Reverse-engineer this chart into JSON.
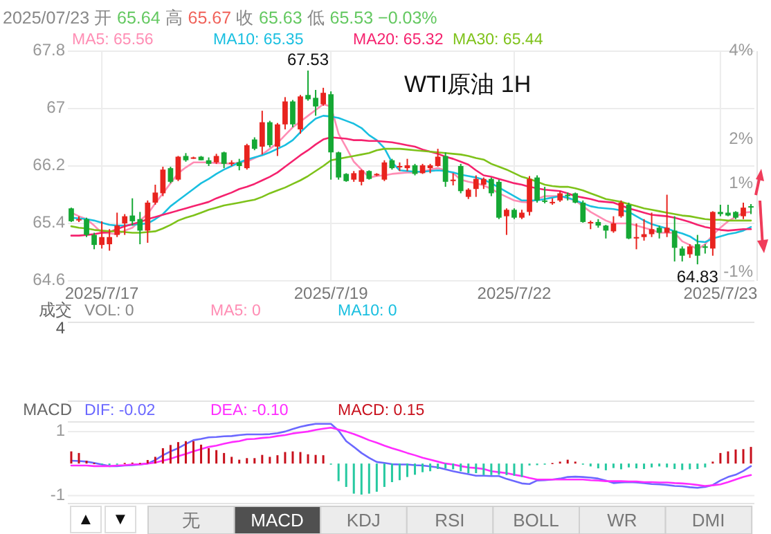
{
  "chart_data": [
    {
      "type": "candlestick",
      "title": "WTI原油 1H",
      "subtitle": "2025/07/23 开 65.64 高 65.67 收 65.63 低 65.53 −0.03%",
      "categories": [
        null,
        null,
        null,
        null,
        "2025/7/17",
        null,
        null,
        null,
        null,
        null,
        null,
        null,
        null,
        null,
        null,
        null,
        null,
        null,
        null,
        null,
        null,
        null,
        null,
        null,
        null,
        null,
        null,
        null,
        null,
        null,
        null,
        null,
        null,
        null,
        "2025/7/19",
        null,
        null,
        null,
        null,
        null,
        null,
        null,
        null,
        null,
        null,
        null,
        null,
        null,
        null,
        null,
        null,
        null,
        null,
        null,
        null,
        null,
        null,
        null,
        "2025/7/22",
        null,
        null,
        null,
        null,
        null,
        null,
        null,
        null,
        null,
        null,
        null,
        null,
        null,
        null,
        null,
        null,
        null,
        null,
        null,
        null,
        null,
        null,
        null,
        null,
        null,
        null,
        "2025/7/23",
        null,
        null,
        null,
        null
      ],
      "ohlc": [
        [
          65.61,
          65.62,
          65.42,
          65.43
        ],
        [
          65.45,
          65.5,
          65.42,
          65.46
        ],
        [
          65.46,
          65.48,
          65.21,
          65.24
        ],
        [
          65.24,
          65.27,
          65.04,
          65.1
        ],
        [
          65.1,
          65.43,
          65.05,
          65.21
        ],
        [
          65.11,
          65.32,
          65.02,
          65.21
        ],
        [
          65.24,
          65.55,
          65.21,
          65.37
        ],
        [
          65.4,
          65.53,
          65.24,
          65.5
        ],
        [
          65.51,
          65.75,
          65.37,
          65.43
        ],
        [
          65.46,
          65.56,
          65.11,
          65.3
        ],
        [
          65.3,
          65.72,
          65.13,
          65.69
        ],
        [
          65.69,
          65.94,
          65.66,
          65.83
        ],
        [
          65.82,
          66.19,
          65.78,
          66.15
        ],
        [
          66.17,
          66.19,
          65.96,
          65.98
        ],
        [
          66.01,
          66.34,
          65.99,
          66.33
        ],
        [
          66.34,
          66.38,
          66.26,
          66.28
        ],
        [
          66.31,
          66.33,
          66.3,
          66.32
        ],
        [
          66.33,
          66.34,
          66.28,
          66.28
        ],
        [
          66.28,
          66.32,
          66.2,
          66.23
        ],
        [
          66.25,
          66.37,
          66.23,
          66.34
        ],
        [
          66.39,
          66.4,
          66.17,
          66.23
        ],
        [
          66.23,
          66.28,
          66.2,
          66.25
        ],
        [
          66.25,
          66.3,
          66.14,
          66.2
        ],
        [
          66.17,
          66.51,
          66.15,
          66.49
        ],
        [
          66.57,
          66.6,
          66.42,
          66.44
        ],
        [
          66.47,
          66.97,
          66.36,
          66.81
        ],
        [
          66.81,
          66.83,
          66.46,
          66.49
        ],
        [
          66.47,
          66.8,
          66.34,
          66.78
        ],
        [
          66.78,
          67.16,
          66.71,
          67.1
        ],
        [
          67.1,
          67.12,
          66.74,
          66.78
        ],
        [
          66.71,
          67.19,
          66.65,
          67.17
        ],
        [
          67.19,
          67.53,
          67.11,
          67.13
        ],
        [
          67.15,
          67.26,
          66.9,
          67.03
        ],
        [
          67.06,
          67.29,
          67.04,
          67.22
        ],
        [
          67.2,
          67.24,
          66.01,
          66.39
        ],
        [
          66.39,
          66.4,
          66.01,
          66.04
        ],
        [
          66.09,
          66.1,
          65.98,
          65.99
        ],
        [
          66.01,
          66.13,
          65.98,
          66.1
        ],
        [
          65.98,
          66.15,
          65.93,
          66.14
        ],
        [
          66.13,
          66.14,
          66.01,
          66.02
        ],
        [
          66.07,
          66.1,
          66.06,
          66.09
        ],
        [
          66.01,
          66.28,
          65.99,
          66.25
        ],
        [
          66.28,
          66.3,
          66.15,
          66.17
        ],
        [
          66.19,
          66.25,
          66.13,
          66.2
        ],
        [
          66.17,
          66.3,
          66.13,
          66.21
        ],
        [
          66.21,
          66.23,
          66.07,
          66.09
        ],
        [
          66.1,
          66.23,
          66.09,
          66.21
        ],
        [
          66.17,
          66.23,
          66.1,
          66.21
        ],
        [
          66.2,
          66.44,
          66.19,
          66.33
        ],
        [
          66.34,
          66.39,
          65.91,
          65.98
        ],
        [
          65.99,
          66.1,
          65.93,
          66.01
        ],
        [
          66.2,
          66.23,
          65.82,
          65.85
        ],
        [
          65.77,
          65.89,
          65.74,
          65.87
        ],
        [
          65.88,
          66.07,
          65.77,
          66.02
        ],
        [
          65.94,
          66.04,
          65.88,
          66.02
        ],
        [
          66.02,
          66.04,
          65.78,
          65.82
        ],
        [
          65.98,
          66.01,
          65.46,
          65.48
        ],
        [
          65.5,
          65.61,
          65.24,
          65.59
        ],
        [
          65.59,
          65.61,
          65.46,
          65.48
        ],
        [
          65.48,
          65.59,
          65.46,
          65.55
        ],
        [
          65.56,
          66.06,
          65.51,
          66.02
        ],
        [
          66.04,
          66.07,
          65.69,
          65.72
        ],
        [
          65.72,
          65.91,
          65.68,
          65.7
        ],
        [
          65.69,
          65.75,
          65.66,
          65.7
        ],
        [
          65.72,
          65.85,
          65.7,
          65.82
        ],
        [
          65.8,
          65.83,
          65.72,
          65.78
        ],
        [
          65.82,
          65.83,
          65.68,
          65.69
        ],
        [
          65.69,
          65.72,
          65.41,
          65.42
        ],
        [
          65.4,
          65.44,
          65.32,
          65.42
        ],
        [
          65.42,
          65.46,
          65.34,
          65.37
        ],
        [
          65.37,
          65.38,
          65.19,
          65.3
        ],
        [
          65.29,
          65.5,
          65.27,
          65.4
        ],
        [
          65.5,
          65.72,
          65.48,
          65.69
        ],
        [
          65.66,
          65.69,
          65.18,
          65.19
        ],
        [
          65.19,
          65.4,
          65.04,
          65.21
        ],
        [
          65.21,
          65.46,
          65.16,
          65.25
        ],
        [
          65.25,
          65.55,
          65.21,
          65.32
        ],
        [
          65.34,
          65.37,
          65.19,
          65.27
        ],
        [
          65.27,
          65.8,
          65.21,
          65.34
        ],
        [
          65.3,
          65.5,
          64.87,
          65.06
        ],
        [
          65.05,
          65.08,
          64.87,
          64.95
        ],
        [
          64.97,
          65.11,
          64.92,
          65.08
        ],
        [
          65.11,
          65.24,
          64.83,
          64.95
        ],
        [
          65.08,
          65.11,
          64.98,
          65.06
        ],
        [
          65.05,
          65.57,
          64.95,
          65.56
        ],
        [
          65.56,
          65.66,
          65.5,
          65.53
        ],
        [
          65.55,
          65.66,
          65.5,
          65.51
        ],
        [
          65.56,
          65.57,
          65.46,
          65.48
        ],
        [
          65.5,
          65.69,
          65.46,
          65.62
        ],
        [
          65.64,
          65.67,
          65.53,
          65.63
        ]
      ],
      "series": [
        {
          "name": "MA5: 65.56",
          "type": "line",
          "color": "#ff8db4",
          "values": [
            65.55,
            65.5,
            65.46,
            65.37,
            65.27,
            65.26,
            65.25,
            65.3,
            65.34,
            65.44,
            65.53,
            65.68,
            65.82,
            65.96,
            66.1,
            66.18,
            66.25,
            66.25,
            66.25,
            66.24,
            66.24,
            66.23,
            66.25,
            66.26,
            66.31,
            66.36,
            66.44,
            66.52,
            66.63,
            66.74,
            66.82,
            66.9,
            66.98,
            67.06,
            67.03,
            66.65,
            66.46,
            66.26,
            66.15,
            66.04,
            66.06,
            66.07,
            66.09,
            66.1,
            66.11,
            66.11,
            66.12,
            66.15,
            66.17,
            66.14,
            66.1,
            66.01,
            65.98,
            65.96,
            65.93,
            65.88,
            65.82,
            65.77,
            65.72,
            65.7,
            65.69,
            65.74,
            65.78,
            65.78,
            65.78,
            65.75,
            65.72,
            65.64,
            65.56,
            65.5,
            65.44,
            65.4,
            65.4,
            65.4,
            65.37,
            65.34,
            65.31,
            65.27,
            65.27,
            65.27,
            65.15,
            65.1,
            65.04,
            65.11,
            65.24,
            65.34,
            65.43,
            65.49,
            65.55,
            65.56
          ]
        },
        {
          "name": "MA10: 65.35",
          "type": "line",
          "color": "#19bfe0",
          "values": [
            65.48,
            65.47,
            65.46,
            65.44,
            65.41,
            65.38,
            65.37,
            65.37,
            65.38,
            65.39,
            65.4,
            65.46,
            65.53,
            65.64,
            65.72,
            65.8,
            65.88,
            65.96,
            66.02,
            66.09,
            66.15,
            66.2,
            66.25,
            66.29,
            66.32,
            66.35,
            66.39,
            66.44,
            66.49,
            66.56,
            66.67,
            66.77,
            66.86,
            66.9,
            66.89,
            66.87,
            66.83,
            66.79,
            66.73,
            66.63,
            66.56,
            66.45,
            66.25,
            66.14,
            66.13,
            66.12,
            66.12,
            66.13,
            66.14,
            66.13,
            66.11,
            66.08,
            66.06,
            66.04,
            66.01,
            65.96,
            65.9,
            65.84,
            65.78,
            65.72,
            65.72,
            65.72,
            65.74,
            65.76,
            65.78,
            65.76,
            65.72,
            65.68,
            65.64,
            65.62,
            65.61,
            65.6,
            65.58,
            65.56,
            65.5,
            65.44,
            65.39,
            65.36,
            65.33,
            65.29,
            65.26,
            65.22,
            65.15,
            65.14,
            65.19,
            65.22,
            65.25,
            65.27,
            65.3,
            65.35
          ]
        },
        {
          "name": "MA20: 65.32",
          "type": "line",
          "color": "#f5226e",
          "values": [
            65.23,
            65.23,
            65.24,
            65.25,
            65.27,
            65.28,
            65.32,
            65.36,
            65.39,
            65.42,
            65.46,
            65.49,
            65.52,
            65.55,
            65.58,
            65.61,
            65.64,
            65.67,
            65.7,
            65.75,
            65.79,
            65.83,
            65.88,
            65.91,
            65.95,
            66.0,
            66.05,
            66.11,
            66.19,
            66.27,
            66.35,
            66.42,
            66.5,
            66.57,
            66.6,
            66.59,
            66.58,
            66.56,
            66.56,
            66.55,
            66.55,
            66.54,
            66.53,
            66.51,
            66.49,
            66.47,
            66.43,
            66.4,
            66.37,
            66.33,
            66.3,
            66.26,
            66.22,
            66.14,
            66.07,
            66.05,
            66.02,
            65.99,
            65.96,
            65.94,
            65.91,
            65.89,
            65.87,
            65.86,
            65.85,
            65.82,
            65.78,
            65.76,
            65.74,
            65.71,
            65.7,
            65.69,
            65.65,
            65.61,
            65.58,
            65.55,
            65.52,
            65.51,
            65.5,
            65.48,
            65.45,
            65.42,
            65.38,
            65.35,
            65.33,
            65.31,
            65.3,
            65.31,
            65.32,
            65.32
          ]
        },
        {
          "name": "MA30: 65.44",
          "type": "line",
          "color": "#7ec21a",
          "values": [
            65.36,
            65.34,
            65.33,
            65.31,
            65.3,
            65.29,
            65.29,
            65.28,
            65.27,
            65.27,
            65.28,
            65.29,
            65.33,
            65.38,
            65.44,
            65.48,
            65.51,
            65.55,
            65.59,
            65.62,
            65.65,
            65.67,
            65.69,
            65.71,
            65.73,
            65.77,
            65.82,
            65.86,
            65.9,
            65.95,
            66.0,
            66.06,
            66.13,
            66.2,
            66.28,
            66.3,
            66.32,
            66.34,
            66.36,
            66.38,
            66.42,
            66.44,
            66.44,
            66.44,
            66.43,
            66.42,
            66.41,
            66.4,
            66.39,
            66.38,
            66.37,
            66.36,
            66.34,
            66.31,
            66.29,
            66.23,
            66.19,
            66.15,
            66.1,
            66.05,
            66.02,
            65.98,
            65.94,
            65.92,
            65.91,
            65.91,
            65.89,
            65.86,
            65.82,
            65.78,
            65.74,
            65.72,
            65.7,
            65.67,
            65.64,
            65.61,
            65.59,
            65.57,
            65.55,
            65.53,
            65.51,
            65.5,
            65.48,
            65.46,
            65.45,
            65.45,
            65.44,
            65.44,
            65.44,
            65.44
          ]
        }
      ],
      "ylim": [
        64.6,
        67.8
      ],
      "yticks": [
        64.6,
        65.4,
        66.2,
        67,
        67.8
      ],
      "y2lim": [
        -1.2,
        4
      ],
      "y2ticks": [
        {
          "value": -1,
          "label": "-1%"
        },
        {
          "value": 1,
          "label": "1%"
        },
        {
          "value": 2,
          "label": "2%"
        },
        {
          "value": 4,
          "label": "4%"
        }
      ],
      "annotations": [
        {
          "text": "67.53",
          "y": 67.53
        },
        {
          "text": "64.83",
          "y": 64.83
        }
      ],
      "grid": true,
      "legend": "top"
    },
    {
      "type": "other",
      "title": "成交",
      "series": [
        {
          "name": "VOL: 0",
          "color": "#888888"
        },
        {
          "name": "MA5: 0",
          "color": "#ff8db4"
        },
        {
          "name": "MA10: 0",
          "color": "#19bfe0"
        }
      ],
      "annotations": [
        "4"
      ]
    },
    {
      "type": "bar",
      "title": "MACD",
      "categories": [
        null,
        null,
        null,
        null,
        null,
        null,
        null,
        null,
        null,
        null,
        null,
        null,
        null,
        null,
        null,
        null,
        null,
        null,
        null,
        null,
        null,
        null,
        null,
        null,
        null,
        null,
        null,
        null,
        null,
        null,
        null,
        null,
        null,
        null,
        null,
        null,
        null,
        null,
        null,
        null,
        null,
        null,
        null,
        null,
        null,
        null,
        null,
        null,
        null,
        null,
        null,
        null,
        null,
        null,
        null,
        null,
        null,
        null,
        null,
        null,
        null,
        null,
        null,
        null,
        null,
        null,
        null,
        null,
        null,
        null,
        null,
        null,
        null,
        null,
        null,
        null,
        null,
        null,
        null,
        null,
        null,
        null,
        null,
        null,
        null,
        null,
        null,
        null,
        null,
        null
      ],
      "series": [
        {
          "name": "DIF: -0.02",
          "type": "line",
          "color": "#6b68ff",
          "values": [
            0.09,
            0.08,
            0.06,
            0.02,
            -0.03,
            -0.08,
            -0.08,
            -0.06,
            -0.05,
            -0.03,
            0,
            0.11,
            0.26,
            0.38,
            0.48,
            0.61,
            0.73,
            0.77,
            0.82,
            0.83,
            0.85,
            0.86,
            0.89,
            0.91,
            0.91,
            0.91,
            0.92,
            0.95,
            1.0,
            1.08,
            1.15,
            1.2,
            1.24,
            1.24,
            1.24,
            1.03,
            0.7,
            0.52,
            0.33,
            0.18,
            0.05,
            0.02,
            -0.02,
            -0.03,
            -0.03,
            -0.05,
            -0.06,
            -0.09,
            -0.12,
            -0.18,
            -0.24,
            -0.29,
            -0.33,
            -0.38,
            -0.38,
            -0.39,
            -0.39,
            -0.48,
            -0.55,
            -0.62,
            -0.64,
            -0.53,
            -0.52,
            -0.5,
            -0.47,
            -0.42,
            -0.41,
            -0.42,
            -0.44,
            -0.47,
            -0.53,
            -0.61,
            -0.59,
            -0.58,
            -0.59,
            -0.61,
            -0.64,
            -0.65,
            -0.67,
            -0.7,
            -0.71,
            -0.74,
            -0.76,
            -0.73,
            -0.67,
            -0.53,
            -0.42,
            -0.35,
            -0.23,
            -0.08
          ]
        },
        {
          "name": "DEA: -0.10",
          "type": "line",
          "color": "#ff2cff",
          "values": [
            -0.06,
            -0.06,
            -0.06,
            -0.08,
            -0.08,
            -0.08,
            -0.06,
            -0.05,
            -0.03,
            -0.02,
            0,
            0.03,
            0.09,
            0.15,
            0.23,
            0.3,
            0.38,
            0.45,
            0.52,
            0.56,
            0.62,
            0.67,
            0.7,
            0.76,
            0.77,
            0.8,
            0.82,
            0.86,
            0.89,
            0.94,
            0.97,
            1.0,
            1.05,
            1.09,
            1.12,
            1.06,
            1.0,
            0.92,
            0.83,
            0.73,
            0.65,
            0.56,
            0.48,
            0.41,
            0.33,
            0.26,
            0.18,
            0.12,
            0.06,
            0,
            -0.03,
            -0.08,
            -0.12,
            -0.14,
            -0.17,
            -0.24,
            -0.27,
            -0.3,
            -0.35,
            -0.39,
            -0.45,
            -0.5,
            -0.5,
            -0.5,
            -0.5,
            -0.5,
            -0.5,
            -0.5,
            -0.52,
            -0.53,
            -0.55,
            -0.55,
            -0.55,
            -0.56,
            -0.56,
            -0.58,
            -0.58,
            -0.59,
            -0.59,
            -0.61,
            -0.62,
            -0.64,
            -0.67,
            -0.7,
            -0.68,
            -0.65,
            -0.58,
            -0.5,
            -0.42,
            -0.36
          ]
        },
        {
          "name": "MACD: 0.15",
          "type": "bar",
          "color": "#c8101c",
          "colors": [
            "#c8101c",
            "#c8101c",
            "#c8101c",
            "#c8101c",
            "#26c9a0",
            "#26c9a0",
            "#26c9a0",
            "#c8101c",
            "#c8101c",
            "#c8101c",
            "#c8101c",
            "#c8101c",
            "#c8101c",
            "#c8101c",
            "#c8101c",
            "#c8101c",
            "#c8101c",
            "#c8101c",
            "#c8101c",
            "#c8101c",
            "#c8101c",
            "#c8101c",
            "#c8101c",
            "#c8101c",
            "#c8101c",
            "#c8101c",
            "#c8101c",
            "#c8101c",
            "#c8101c",
            "#c8101c",
            "#c8101c",
            "#c8101c",
            "#c8101c",
            "#c8101c",
            "#26c9a0",
            "#26c9a0",
            "#26c9a0",
            "#26c9a0",
            "#26c9a0",
            "#26c9a0",
            "#26c9a0",
            "#26c9a0",
            "#26c9a0",
            "#26c9a0",
            "#26c9a0",
            "#26c9a0",
            "#26c9a0",
            "#26c9a0",
            "#26c9a0",
            "#26c9a0",
            "#26c9a0",
            "#26c9a0",
            "#26c9a0",
            "#26c9a0",
            "#26c9a0",
            "#26c9a0",
            "#26c9a0",
            "#26c9a0",
            "#26c9a0",
            "#26c9a0",
            "#26c9a0",
            "#26c9a0",
            "#26c9a0",
            "#c8101c",
            "#c8101c",
            "#c8101c",
            "#c8101c",
            "#26c9a0",
            "#26c9a0",
            "#26c9a0",
            "#26c9a0",
            "#26c9a0",
            "#26c9a0",
            "#26c9a0",
            "#26c9a0",
            "#26c9a0",
            "#26c9a0",
            "#26c9a0",
            "#26c9a0",
            "#26c9a0",
            "#26c9a0",
            "#26c9a0",
            "#26c9a0",
            "#26c9a0",
            "#c8101c",
            "#c8101c",
            "#c8101c",
            "#c8101c",
            "#c8101c",
            "#c8101c"
          ],
          "values": [
            0.38,
            0.33,
            0.09,
            0,
            -0.03,
            -0.05,
            -0.03,
            0.02,
            0.03,
            0.02,
            0.11,
            0.21,
            0.48,
            0.58,
            0.67,
            0.7,
            0.7,
            0.59,
            0.48,
            0.42,
            0.33,
            0.21,
            0.12,
            0.17,
            0.17,
            0.27,
            0.21,
            0.26,
            0.36,
            0.38,
            0.36,
            0.29,
            0.27,
            0.26,
            -0.03,
            -0.55,
            -0.73,
            -0.94,
            -0.97,
            -0.94,
            -0.88,
            -0.73,
            -0.58,
            -0.52,
            -0.42,
            -0.35,
            -0.27,
            -0.24,
            -0.17,
            -0.15,
            -0.18,
            -0.24,
            -0.3,
            -0.3,
            -0.36,
            -0.36,
            -0.35,
            -0.36,
            -0.38,
            -0.42,
            -0.06,
            -0.05,
            -0.03,
            0,
            0.06,
            0.12,
            0.06,
            -0.03,
            -0.09,
            -0.15,
            -0.21,
            -0.14,
            -0.18,
            -0.12,
            -0.15,
            -0.17,
            -0.12,
            -0.09,
            -0.12,
            -0.17,
            -0.2,
            -0.18,
            -0.17,
            -0.12,
            0.06,
            0.33,
            0.38,
            0.44,
            0.45,
            0.52
          ]
        }
      ],
      "ylim": [
        -1.25,
        1.3
      ],
      "yticks": [
        -1,
        1
      ],
      "grid": true,
      "legend": "top",
      "annotations": [
        "▲",
        "▼",
        "无",
        "MACD",
        "KDJ",
        "RSI",
        "BOLL",
        "WR",
        "DMI"
      ]
    }
  ]
}
